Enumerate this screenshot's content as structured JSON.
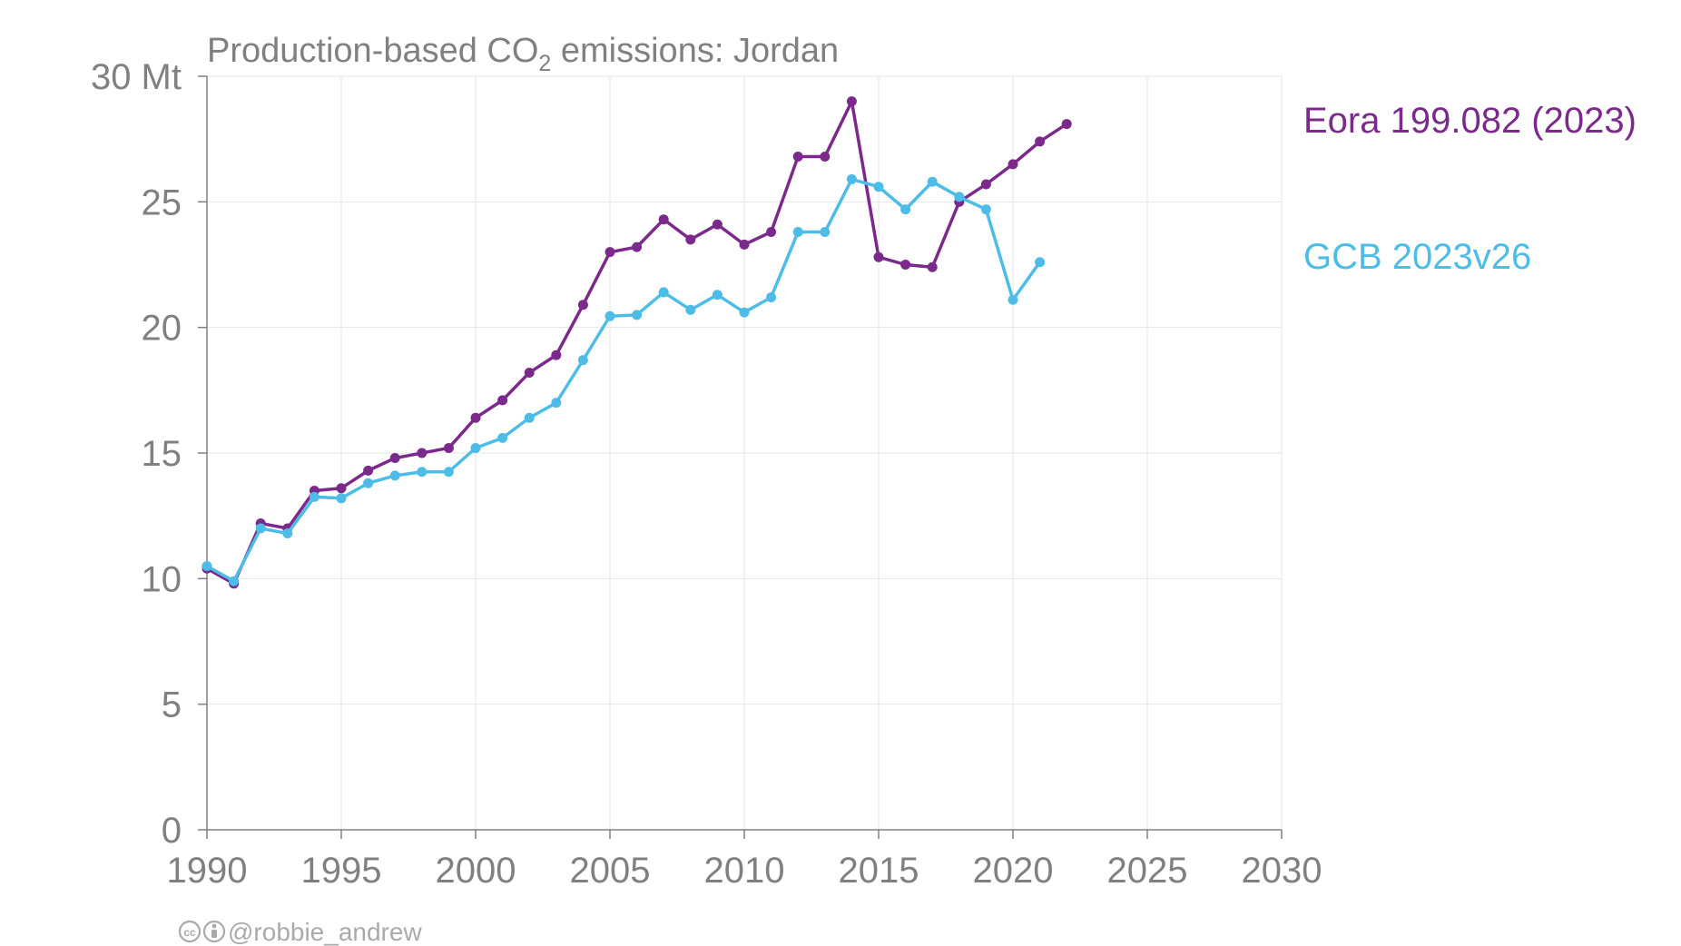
{
  "chart_data": {
    "type": "line",
    "title_main": "Production-based CO",
    "title_sub": "2",
    "title_tail": " emissions: Jordan",
    "y_unit": "Mt",
    "xlim": [
      1990,
      2030
    ],
    "ylim": [
      0,
      30
    ],
    "x_ticks": [
      1990,
      1995,
      2000,
      2005,
      2010,
      2015,
      2020,
      2025,
      2030
    ],
    "y_ticks": [
      0,
      5,
      10,
      15,
      20,
      25,
      30
    ],
    "grid": true,
    "legend_position": "right",
    "series": [
      {
        "name": "Eora 199.082 (2023)",
        "color": "#7B2A8C",
        "x": [
          1990,
          1991,
          1992,
          1993,
          1994,
          1995,
          1996,
          1997,
          1998,
          1999,
          2000,
          2001,
          2002,
          2003,
          2004,
          2005,
          2006,
          2007,
          2008,
          2009,
          2010,
          2011,
          2012,
          2013,
          2014,
          2015,
          2016,
          2017,
          2018,
          2019,
          2020,
          2021,
          2022
        ],
        "values": [
          10.4,
          9.8,
          12.2,
          12.0,
          13.5,
          13.6,
          14.3,
          14.8,
          15.0,
          15.2,
          16.4,
          17.1,
          18.2,
          18.9,
          20.9,
          23.0,
          23.2,
          24.3,
          23.5,
          24.1,
          23.3,
          23.8,
          26.8,
          26.8,
          29.0,
          22.8,
          22.5,
          22.4,
          25.0,
          25.7,
          26.5,
          27.4,
          28.1
        ]
      },
      {
        "name": "GCB 2023v26",
        "color": "#4DBDE8",
        "x": [
          1990,
          1991,
          1992,
          1993,
          1994,
          1995,
          1996,
          1997,
          1998,
          1999,
          2000,
          2001,
          2002,
          2003,
          2004,
          2005,
          2006,
          2007,
          2008,
          2009,
          2010,
          2011,
          2012,
          2013,
          2014,
          2015,
          2016,
          2017,
          2018,
          2019,
          2020,
          2021
        ],
        "values": [
          10.5,
          9.9,
          12.0,
          11.8,
          13.25,
          13.2,
          13.8,
          14.1,
          14.25,
          14.25,
          15.2,
          15.6,
          16.4,
          17.0,
          18.7,
          20.45,
          20.5,
          21.4,
          20.7,
          21.3,
          20.6,
          21.2,
          23.8,
          23.8,
          25.9,
          25.6,
          24.7,
          25.8,
          25.2,
          24.7,
          21.1,
          22.6
        ]
      }
    ]
  },
  "credit": {
    "cc_icon": "creative-commons-icon",
    "by_icon": "attribution-icon",
    "text": "@robbie_andrew"
  }
}
